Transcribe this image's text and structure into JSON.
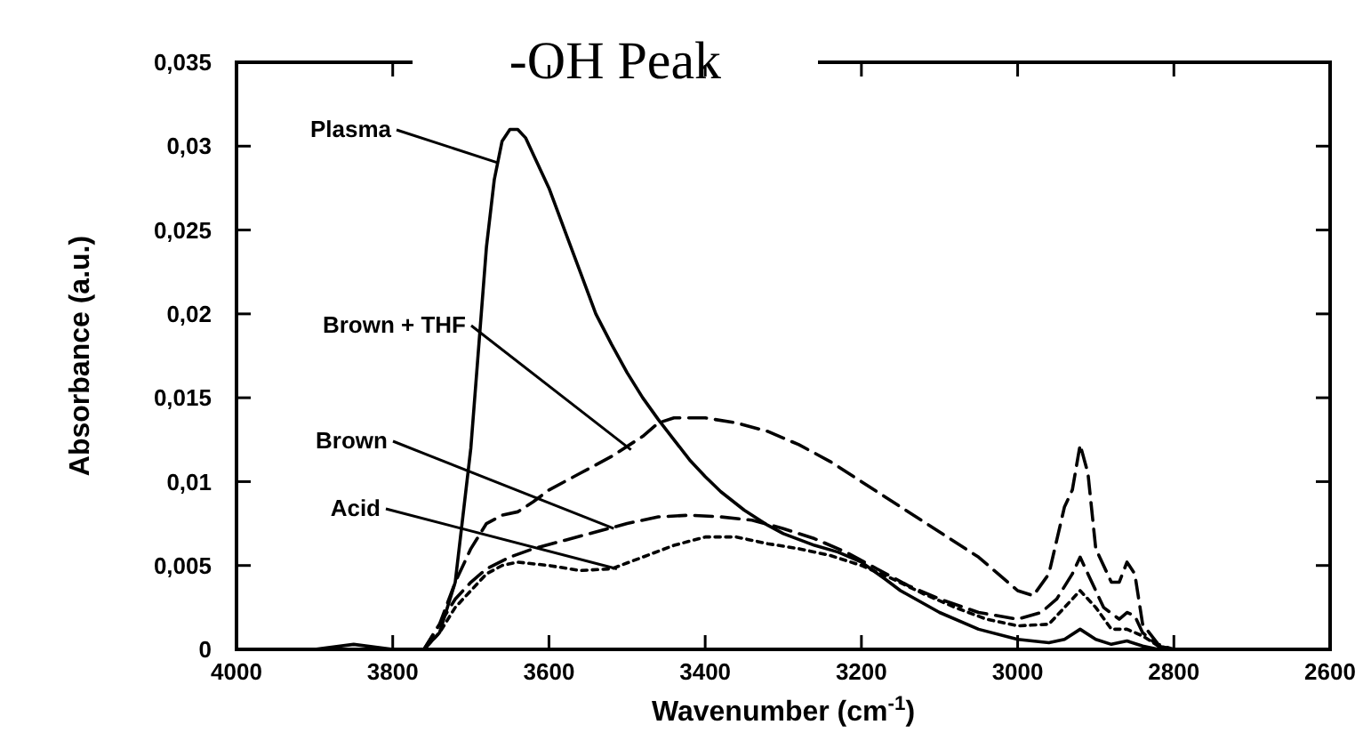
{
  "chart_data": {
    "type": "line",
    "title": "-OH Peak",
    "xlabel": "Wavenumber (cm$^{-1}$)",
    "ylabel": "Absorbance (a.u.)",
    "xlim": [
      4000,
      2600
    ],
    "xticks": [
      4000,
      3800,
      3600,
      3400,
      3200,
      3000,
      2800,
      2600
    ],
    "ylim": [
      0,
      0.035
    ],
    "yticks": [
      0,
      {
        "value": 0.005,
        "label": "0,005"
      },
      {
        "value": 0.01,
        "label": "0,01"
      },
      {
        "value": 0.015,
        "label": "0,015"
      },
      {
        "value": 0.02,
        "label": "0,02"
      },
      {
        "value": 0.025,
        "label": "0,025"
      },
      {
        "value": 0.03,
        "label": "0,03"
      },
      {
        "value": 0.035,
        "label": "0,035"
      }
    ],
    "grid": false,
    "marker": "none",
    "annotations": [
      {
        "text": "Plasma",
        "x": 3665,
        "y": 0.029
      },
      {
        "text": "Brown + THF",
        "x": 3495,
        "y": 0.0119
      },
      {
        "text": "Brown",
        "x": 3517,
        "y": 0.0072
      },
      {
        "text": "Acid",
        "x": 3513,
        "y": 0.0048
      }
    ],
    "series": [
      {
        "color": "#000000",
        "line_style": "solid",
        "x": [
          4000,
          3900,
          3850,
          3800,
          3760,
          3740,
          3720,
          3700,
          3690,
          3680,
          3670,
          3660,
          3650,
          3640,
          3630,
          3620,
          3600,
          3580,
          3560,
          3540,
          3520,
          3500,
          3480,
          3460,
          3440,
          3420,
          3400,
          3380,
          3350,
          3320,
          3300,
          3260,
          3230,
          3200,
          3170,
          3150,
          3100,
          3050,
          3000,
          2960,
          2940,
          2920,
          2900,
          2880,
          2860,
          2840,
          2820,
          2800,
          2700,
          2600
        ],
        "values": [
          0,
          0,
          0.0003,
          0,
          0,
          0.001,
          0.004,
          0.012,
          0.018,
          0.024,
          0.028,
          0.0303,
          0.031,
          0.031,
          0.0305,
          0.0295,
          0.0275,
          0.025,
          0.0225,
          0.02,
          0.0182,
          0.0165,
          0.015,
          0.0137,
          0.0125,
          0.0113,
          0.0103,
          0.0094,
          0.0083,
          0.0074,
          0.0069,
          0.0062,
          0.0058,
          0.0052,
          0.0042,
          0.0035,
          0.0022,
          0.0012,
          0.0006,
          0.0004,
          0.0006,
          0.0012,
          0.0006,
          0.0003,
          0.0005,
          0.0002,
          0,
          0,
          0,
          0
        ]
      },
      {
        "color": "#000000",
        "line_style": "dashed",
        "x": [
          4000,
          3800,
          3760,
          3740,
          3720,
          3700,
          3680,
          3660,
          3640,
          3620,
          3600,
          3560,
          3520,
          3480,
          3460,
          3440,
          3400,
          3360,
          3320,
          3280,
          3240,
          3200,
          3150,
          3100,
          3050,
          3000,
          2980,
          2960,
          2950,
          2940,
          2930,
          2920,
          2910,
          2900,
          2880,
          2870,
          2860,
          2850,
          2840,
          2820,
          2800,
          2700,
          2600
        ],
        "values": [
          0,
          0,
          0,
          0.0015,
          0.004,
          0.006,
          0.0075,
          0.008,
          0.0082,
          0.0088,
          0.0095,
          0.0105,
          0.0115,
          0.0127,
          0.0135,
          0.0138,
          0.0138,
          0.0135,
          0.013,
          0.0122,
          0.0112,
          0.01,
          0.0085,
          0.007,
          0.0055,
          0.0035,
          0.0032,
          0.0045,
          0.0065,
          0.0085,
          0.0095,
          0.0122,
          0.0105,
          0.006,
          0.004,
          0.004,
          0.0052,
          0.0045,
          0.0015,
          0.0003,
          0,
          0,
          0
        ]
      },
      {
        "color": "#000000",
        "line_style": "dashed",
        "x": [
          4000,
          3800,
          3760,
          3740,
          3720,
          3700,
          3680,
          3650,
          3620,
          3580,
          3540,
          3500,
          3460,
          3420,
          3380,
          3340,
          3300,
          3260,
          3220,
          3180,
          3140,
          3100,
          3050,
          3000,
          2970,
          2950,
          2930,
          2920,
          2910,
          2890,
          2870,
          2860,
          2850,
          2840,
          2820,
          2800,
          2700,
          2600
        ],
        "values": [
          0,
          0,
          0,
          0.0015,
          0.003,
          0.004,
          0.0048,
          0.0055,
          0.006,
          0.0065,
          0.007,
          0.0075,
          0.0079,
          0.008,
          0.0079,
          0.0077,
          0.0072,
          0.0066,
          0.0058,
          0.0048,
          0.0038,
          0.003,
          0.0022,
          0.0018,
          0.0022,
          0.003,
          0.0045,
          0.0055,
          0.0045,
          0.0025,
          0.0018,
          0.0022,
          0.002,
          0.001,
          0.0002,
          0,
          0,
          0
        ]
      },
      {
        "color": "#000000",
        "line_style": "dotted",
        "x": [
          4000,
          3800,
          3760,
          3740,
          3720,
          3700,
          3680,
          3660,
          3640,
          3600,
          3560,
          3520,
          3480,
          3440,
          3400,
          3360,
          3320,
          3280,
          3240,
          3200,
          3160,
          3120,
          3080,
          3040,
          3000,
          2960,
          2940,
          2920,
          2900,
          2880,
          2860,
          2840,
          2820,
          2800,
          2700,
          2600
        ],
        "values": [
          0,
          0,
          0,
          0.001,
          0.0025,
          0.0035,
          0.0045,
          0.005,
          0.0052,
          0.005,
          0.0047,
          0.0048,
          0.0055,
          0.0062,
          0.0067,
          0.0067,
          0.0063,
          0.006,
          0.0056,
          0.005,
          0.0042,
          0.0033,
          0.0025,
          0.0018,
          0.0014,
          0.0015,
          0.0025,
          0.0035,
          0.0025,
          0.0012,
          0.0012,
          0.0008,
          0.0002,
          0,
          0,
          0
        ]
      }
    ]
  }
}
